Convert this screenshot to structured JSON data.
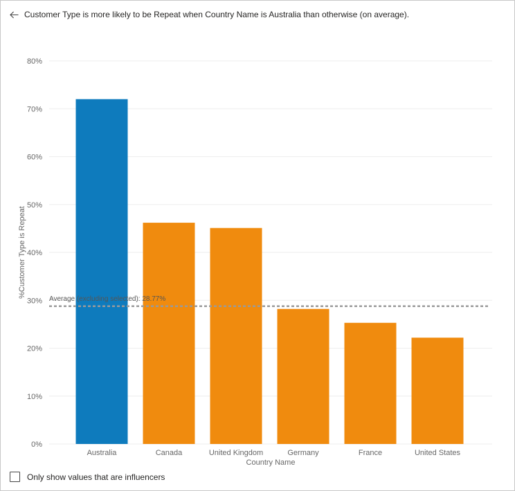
{
  "header": {
    "back_icon": "arrow-left-icon",
    "title": "Customer Type is more likely to be Repeat when Country Name is Australia than otherwise (on average)."
  },
  "footer": {
    "checkbox_checked": false,
    "checkbox_label": "Only show values that are influencers"
  },
  "colors": {
    "selected": "#0e7bbd",
    "other": "#f08b0e",
    "average_line": "#9a9a9a",
    "grid": "#eeeeee"
  },
  "chart_data": {
    "type": "bar",
    "categories": [
      "Australia",
      "Canada",
      "United Kingdom",
      "Germany",
      "France",
      "United States"
    ],
    "values": [
      72.0,
      46.2,
      45.1,
      28.2,
      25.3,
      22.2
    ],
    "highlighted": [
      "Australia"
    ],
    "xlabel": "Country Name",
    "ylabel": "%Customer Type is Repeat",
    "ylim": [
      0,
      80
    ],
    "yticks": [
      0,
      10,
      20,
      30,
      40,
      50,
      60,
      70,
      80
    ],
    "ytick_labels": [
      "0%",
      "10%",
      "20%",
      "30%",
      "40%",
      "50%",
      "60%",
      "70%",
      "80%"
    ],
    "grid": true,
    "reference_line": {
      "value": 28.77,
      "label": "Average (excluding selected): 28.77%"
    }
  }
}
